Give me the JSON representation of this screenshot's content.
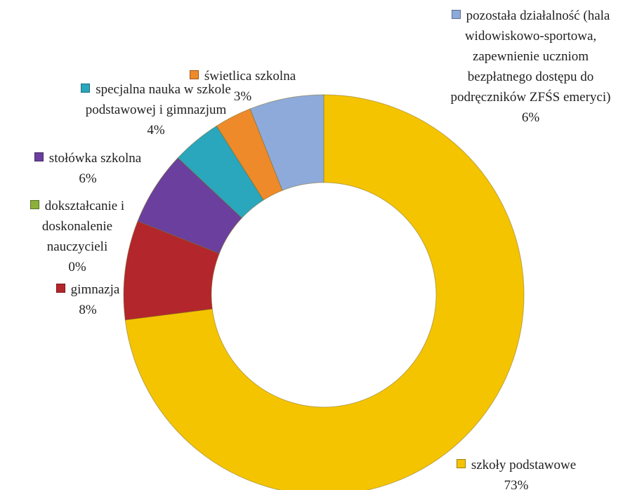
{
  "chart_data": {
    "type": "donut",
    "categories": [
      "szkoły podstawowe",
      "gimnazja",
      "dokształcanie i doskonalenie nauczycieli",
      "stołówka szkolna",
      "specjalna nauka w szkole podstawowej i gimnazjum",
      "świetlica szkolna",
      "pozostała działalność (hala widowiskowo-sportowa, zapewnienie uczniom bezpłatnego dostępu do podręczników ZFŚS emeryci)"
    ],
    "values": [
      73,
      8,
      0,
      6,
      4,
      3,
      6
    ],
    "value_labels": [
      "73%",
      "8%",
      "0%",
      "6%",
      "4%",
      "3%",
      "6%"
    ],
    "colors": [
      "#f5c400",
      "#b3262b",
      "#8cb03a",
      "#6b3f9e",
      "#2aa6bd",
      "#ee8a2a",
      "#8eaadb"
    ]
  }
}
